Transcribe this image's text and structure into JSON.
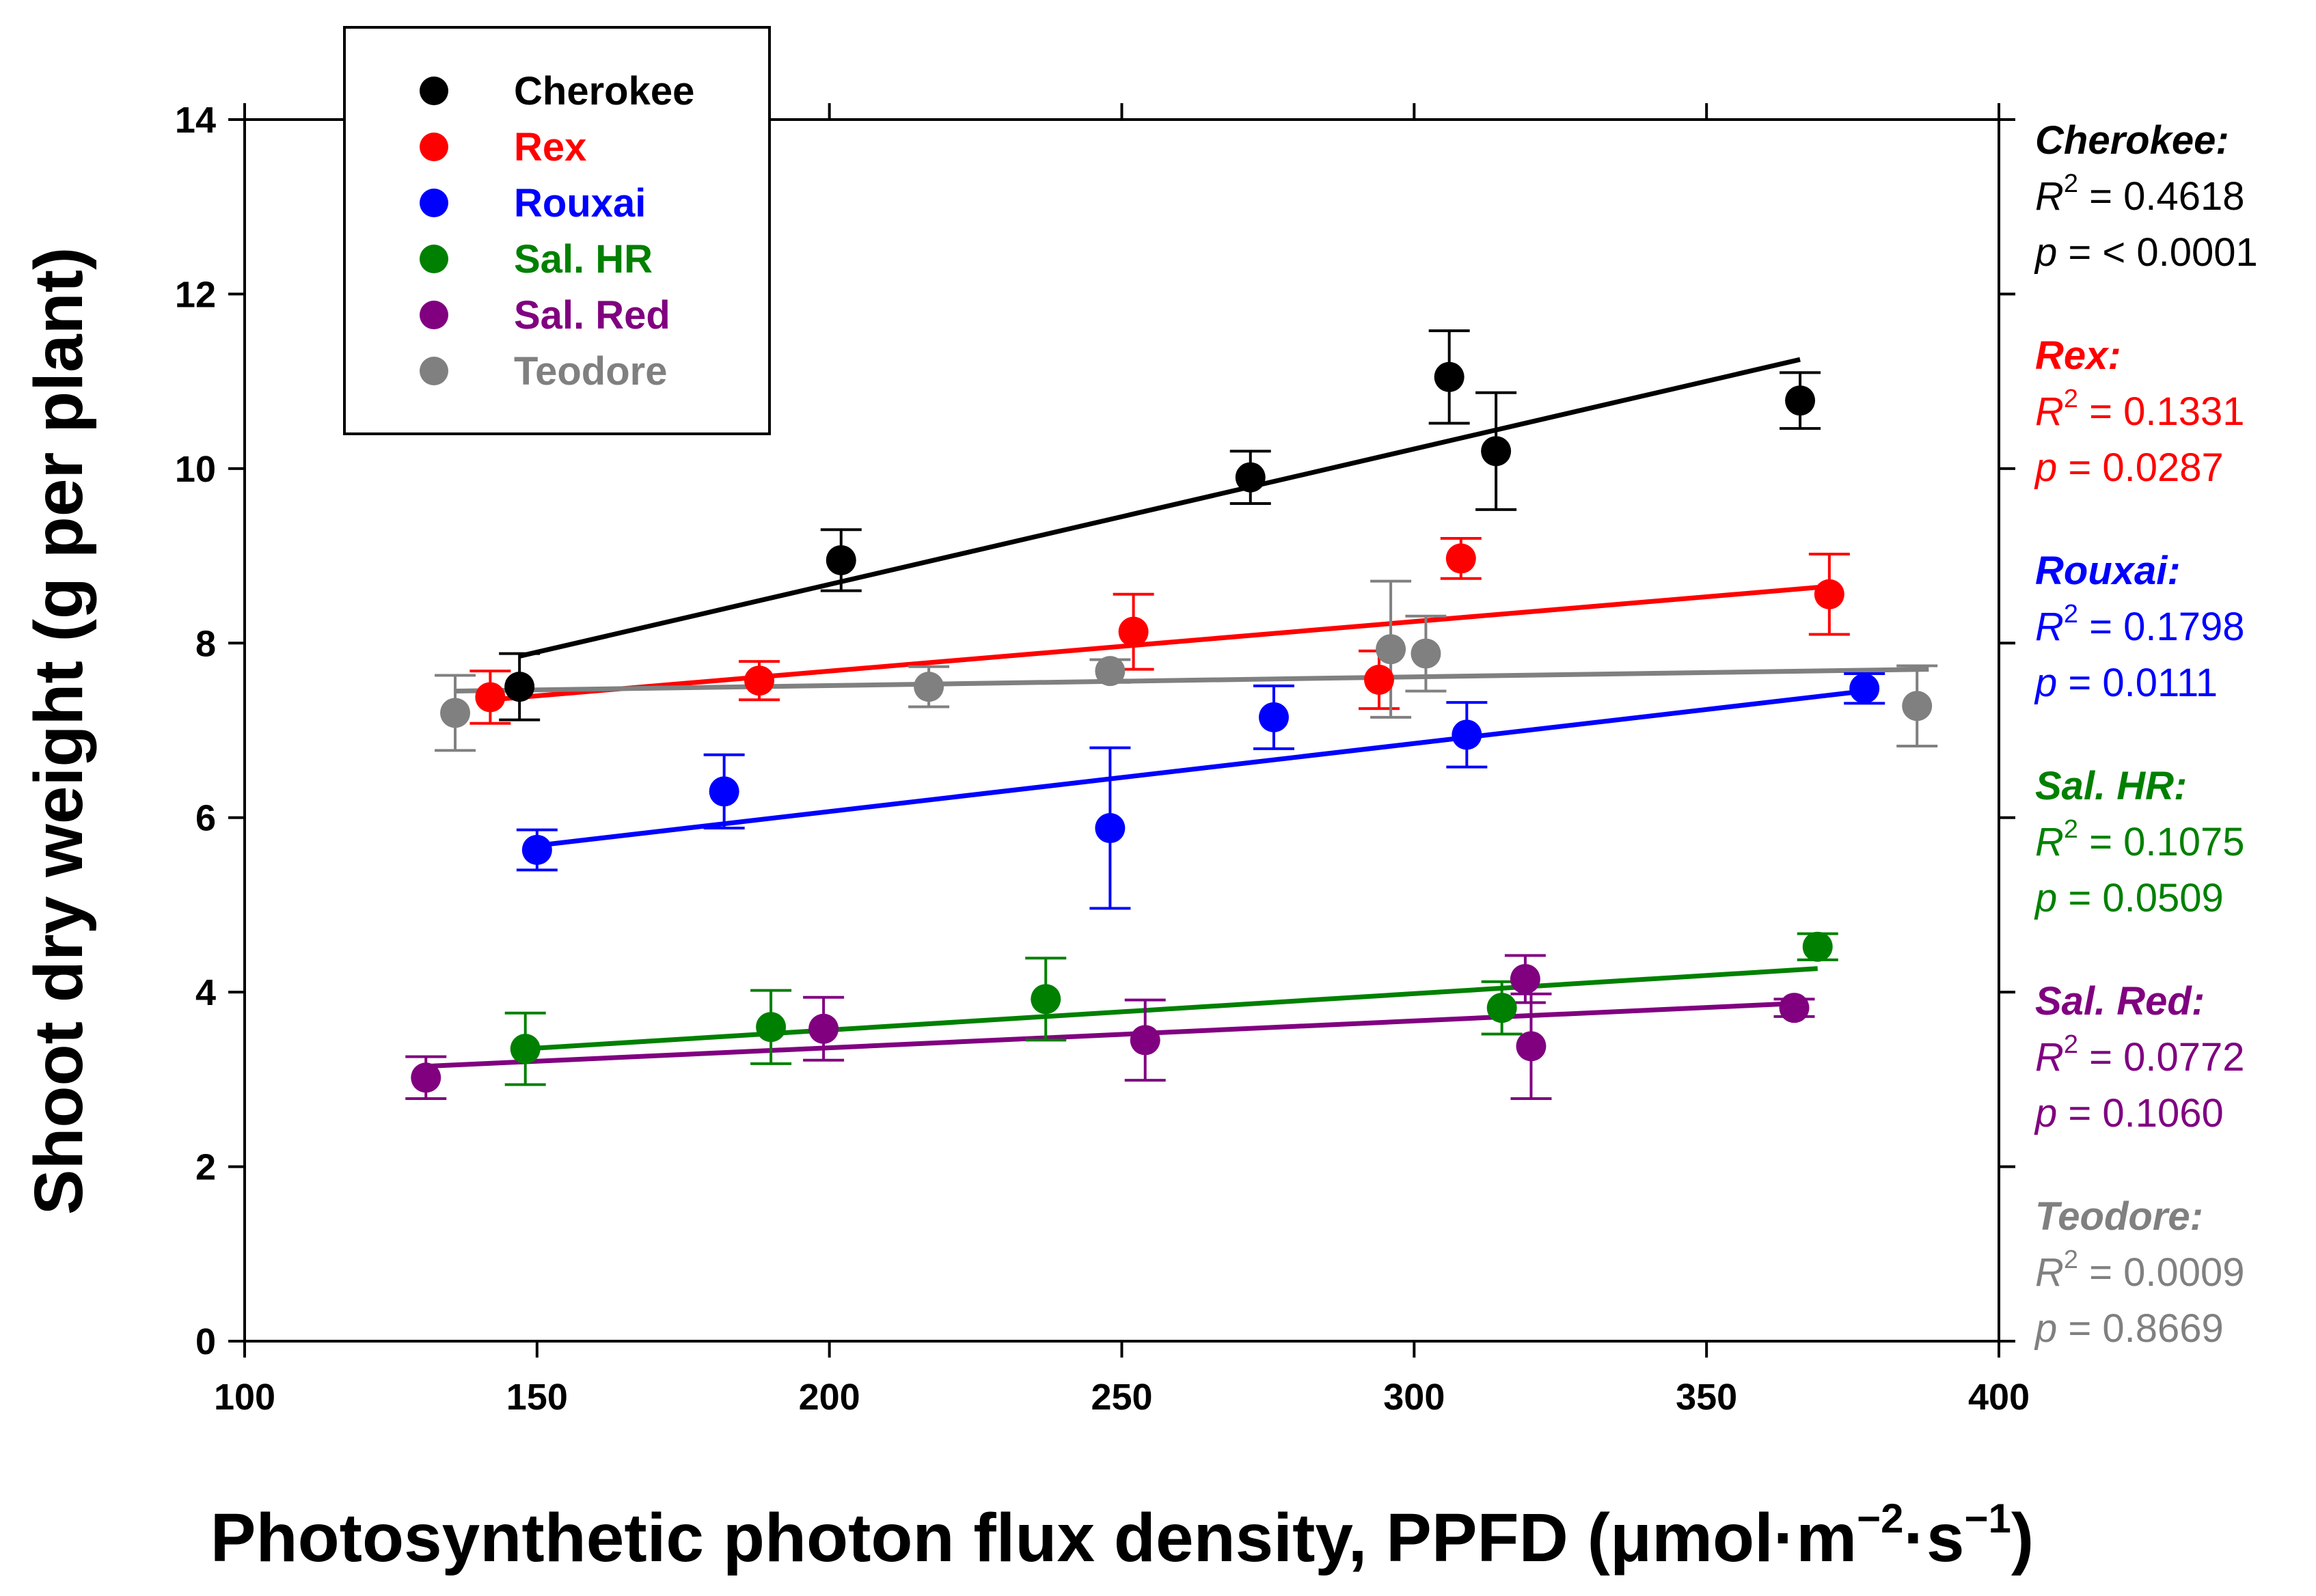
{
  "chart_data": {
    "type": "scatter",
    "title": "",
    "xlabel": "Photosynthetic photon flux density, PPFD (μmol·m⁻²·s⁻¹)",
    "xlabel_parts": {
      "main": "Photosynthetic photon flux density, PPFD (",
      "unit1": "μmol·m",
      "sup1": "−2",
      "mid": "·s",
      "sup2": "−1",
      "close": ")"
    },
    "ylabel": "Shoot dry weight (g per plant)",
    "xlim": [
      100,
      400
    ],
    "ylim": [
      0,
      14
    ],
    "xticks": [
      100,
      150,
      200,
      250,
      300,
      350,
      400
    ],
    "yticks": [
      0,
      2,
      4,
      6,
      8,
      10,
      12,
      14
    ],
    "grid": false,
    "legend_position": "top-left",
    "series": [
      {
        "name": "Cherokee",
        "color": "#000000",
        "points": [
          {
            "x": 147,
            "y": 7.5,
            "err": 0.38
          },
          {
            "x": 202,
            "y": 8.95,
            "err": 0.35
          },
          {
            "x": 272,
            "y": 9.9,
            "err": 0.3
          },
          {
            "x": 306,
            "y": 11.05,
            "err": 0.53
          },
          {
            "x": 314,
            "y": 10.2,
            "err": 0.67
          },
          {
            "x": 366,
            "y": 10.78,
            "err": 0.32
          }
        ],
        "fit": {
          "x": [
            147,
            366
          ],
          "y": [
            7.85,
            11.25
          ]
        },
        "r2": "0.4618",
        "p": "< 0.0001"
      },
      {
        "name": "Rex",
        "color": "#ff0000",
        "points": [
          {
            "x": 142,
            "y": 7.38,
            "err": 0.3
          },
          {
            "x": 188,
            "y": 7.57,
            "err": 0.22
          },
          {
            "x": 252,
            "y": 8.13,
            "err": 0.43
          },
          {
            "x": 294,
            "y": 7.58,
            "err": 0.33
          },
          {
            "x": 308,
            "y": 8.97,
            "err": 0.23
          },
          {
            "x": 371,
            "y": 8.56,
            "err": 0.46
          }
        ],
        "fit": {
          "x": [
            142,
            371
          ],
          "y": [
            7.35,
            8.65
          ]
        },
        "r2": "0.1331",
        "p": "0.0287"
      },
      {
        "name": "Rouxai",
        "color": "#0000ff",
        "points": [
          {
            "x": 150,
            "y": 5.63,
            "err": 0.23
          },
          {
            "x": 182,
            "y": 6.3,
            "err": 0.42
          },
          {
            "x": 248,
            "y": 5.88,
            "err": 0.92
          },
          {
            "x": 276,
            "y": 7.15,
            "err": 0.36
          },
          {
            "x": 309,
            "y": 6.95,
            "err": 0.37
          },
          {
            "x": 377,
            "y": 7.48,
            "err": 0.17
          }
        ],
        "fit": {
          "x": [
            150,
            377
          ],
          "y": [
            5.68,
            7.45
          ]
        },
        "r2": "0.1798",
        "p": "0.0111"
      },
      {
        "name": "Sal. HR",
        "color": "#008000",
        "points": [
          {
            "x": 148,
            "y": 3.35,
            "err": 0.41
          },
          {
            "x": 190,
            "y": 3.6,
            "err": 0.42
          },
          {
            "x": 237,
            "y": 3.92,
            "err": 0.47
          },
          {
            "x": 315,
            "y": 3.82,
            "err": 0.3
          },
          {
            "x": 369,
            "y": 4.52,
            "err": 0.15
          }
        ],
        "fit": {
          "x": [
            148,
            369
          ],
          "y": [
            3.35,
            4.27
          ]
        },
        "r2": "0.1075",
        "p": "0.0509"
      },
      {
        "name": "Sal. Red",
        "color": "#800080",
        "points": [
          {
            "x": 131,
            "y": 3.02,
            "err": 0.24
          },
          {
            "x": 199,
            "y": 3.58,
            "err": 0.36
          },
          {
            "x": 254,
            "y": 3.45,
            "err": 0.46
          },
          {
            "x": 319,
            "y": 4.15,
            "err": 0.27
          },
          {
            "x": 320,
            "y": 3.38,
            "err": 0.6
          },
          {
            "x": 365,
            "y": 3.82,
            "err": 0.1
          }
        ],
        "fit": {
          "x": [
            131,
            365
          ],
          "y": [
            3.15,
            3.87
          ]
        },
        "r2": "0.0772",
        "p": "0.1060"
      },
      {
        "name": "Teodore",
        "color": "#808080",
        "points": [
          {
            "x": 136,
            "y": 7.2,
            "err": 0.43
          },
          {
            "x": 217,
            "y": 7.5,
            "err": 0.23
          },
          {
            "x": 248,
            "y": 7.68,
            "err": 0.13
          },
          {
            "x": 296,
            "y": 7.93,
            "err": 0.78
          },
          {
            "x": 302,
            "y": 7.88,
            "err": 0.43
          },
          {
            "x": 386,
            "y": 7.28,
            "err": 0.46
          }
        ],
        "fit": {
          "x": [
            136,
            388
          ],
          "y": [
            7.45,
            7.7
          ]
        },
        "r2": "0.0009",
        "p": "0.8669"
      }
    ]
  },
  "stats_labels": {
    "r_symbol": "R",
    "r_exp": "2",
    "p_symbol": "p",
    "equals": " = "
  }
}
